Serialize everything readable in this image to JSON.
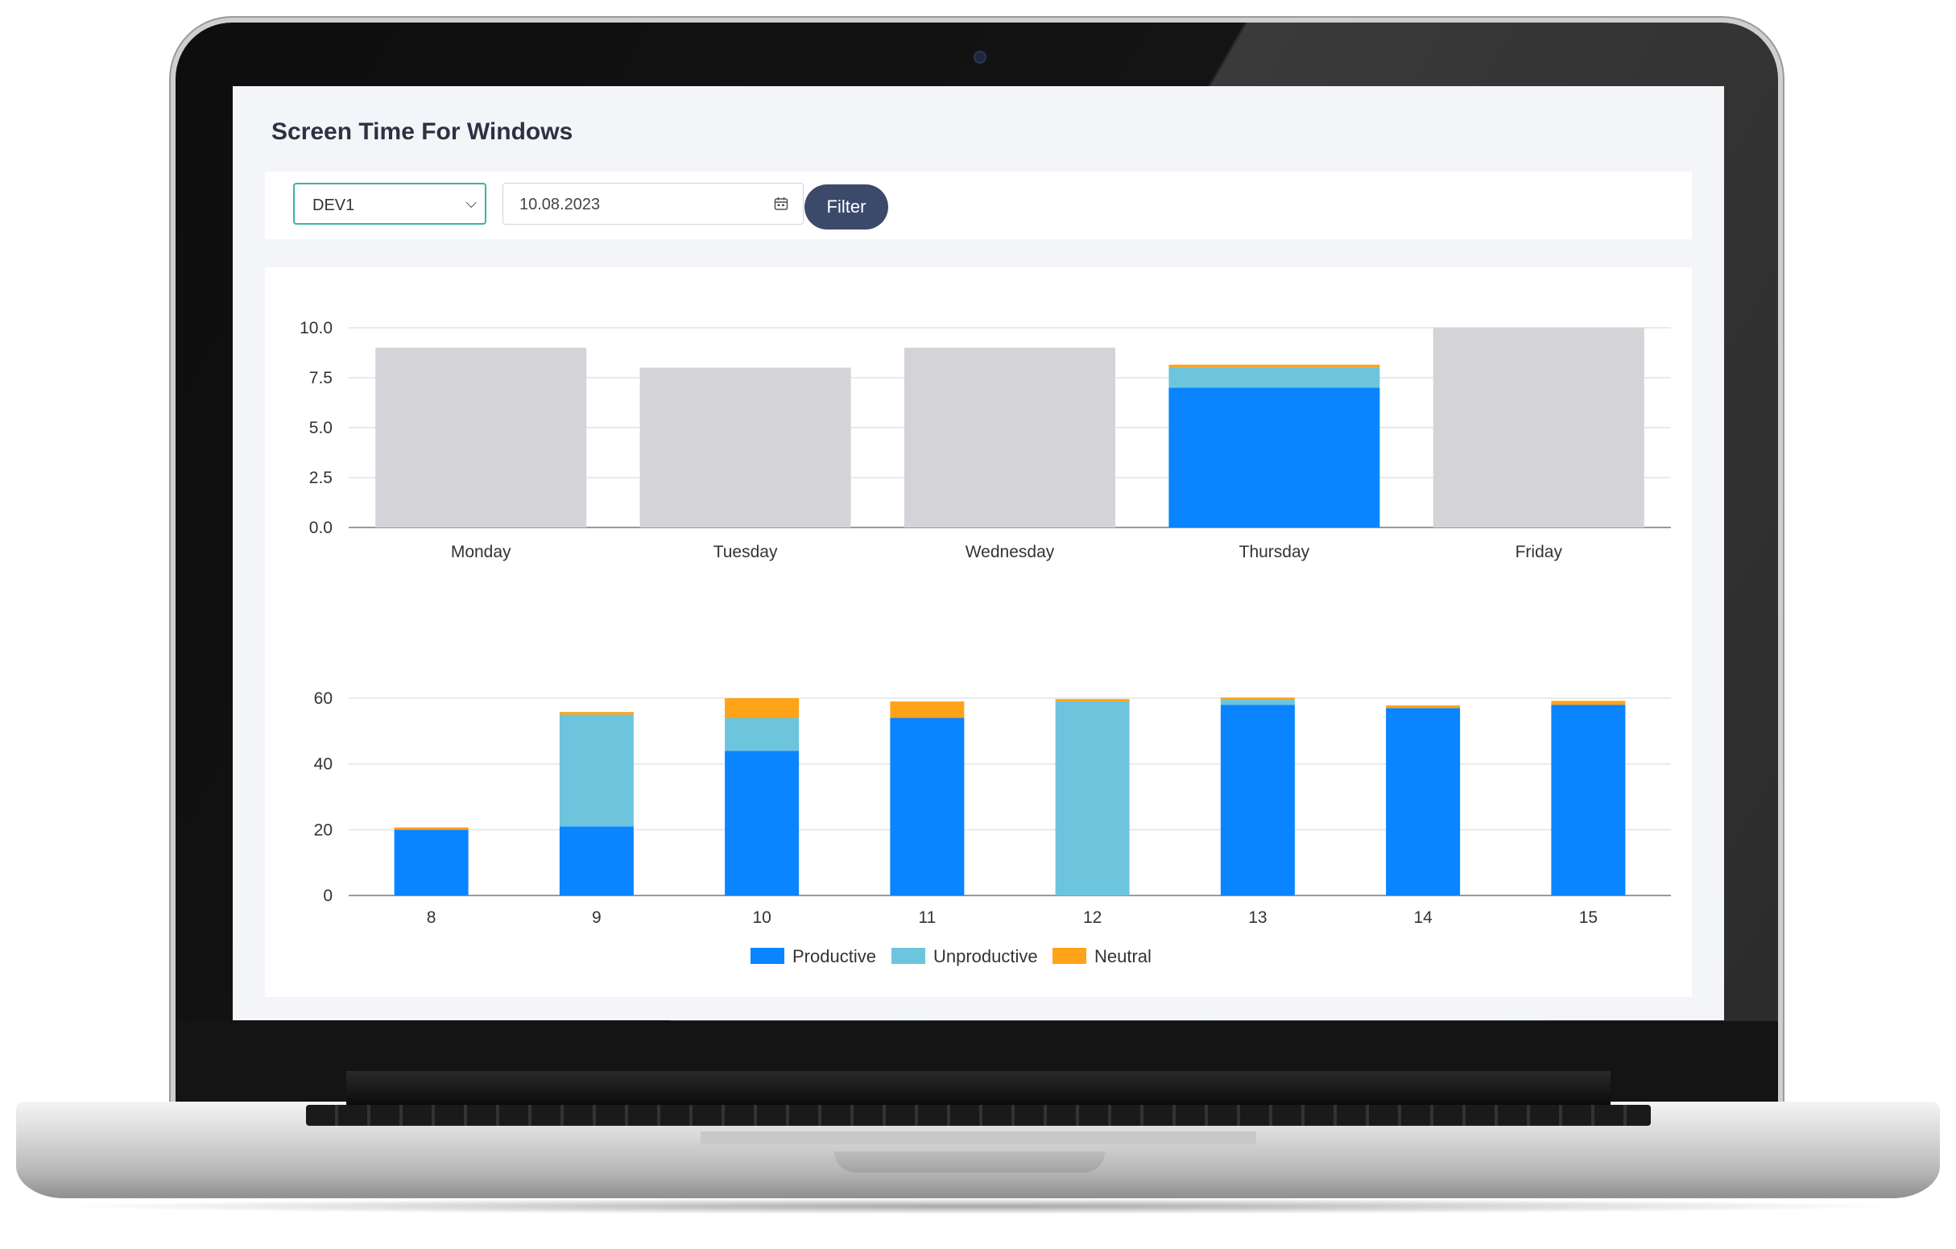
{
  "header": {
    "title": "Screen Time For Windows"
  },
  "filters": {
    "device": "DEV1",
    "date": "10.08.2023",
    "filter_label": "Filter"
  },
  "colors": {
    "productive": "#0a84ff",
    "unproductive": "#6cc5dc",
    "neutral": "#ffa319",
    "inactive": "#d3d3d8"
  },
  "chart_data": [
    {
      "type": "bar",
      "categories": [
        "Monday",
        "Tuesday",
        "Wednesday",
        "Thursday",
        "Friday"
      ],
      "ylim": [
        0,
        10
      ],
      "yticks": [
        "0.0",
        "2.5",
        "5.0",
        "7.5",
        "10.0"
      ],
      "series": [
        {
          "values": [
            9.0,
            8.0,
            9.0,
            0,
            10.0
          ],
          "color": "#d3d3d8"
        },
        {
          "name": "Productive",
          "values": [
            0,
            0,
            0,
            7.0,
            0
          ],
          "color": "#0a84ff"
        },
        {
          "name": "Unproductive",
          "values": [
            0,
            0,
            0,
            1.0,
            0
          ],
          "color": "#6cc5dc"
        },
        {
          "name": "Neutral",
          "values": [
            0,
            0,
            0,
            0.15,
            0
          ],
          "color": "#ffa319"
        }
      ],
      "stacked": true
    },
    {
      "type": "bar",
      "categories": [
        "8",
        "9",
        "10",
        "11",
        "12",
        "13",
        "14",
        "15"
      ],
      "ylim": [
        0,
        60
      ],
      "yticks": [
        "0",
        "20",
        "40",
        "60"
      ],
      "stacked": true,
      "legend": "bottom",
      "series": [
        {
          "name": "Productive",
          "values": [
            20,
            21,
            44,
            54,
            0,
            58,
            57,
            58
          ],
          "color": "#0a84ff"
        },
        {
          "name": "Unproductive",
          "values": [
            0,
            34,
            10,
            0,
            59,
            1.5,
            0,
            0
          ],
          "color": "#6cc5dc"
        },
        {
          "name": "Neutral",
          "values": [
            0.7,
            0.8,
            6,
            5,
            0.7,
            0.7,
            0.8,
            1.2
          ],
          "color": "#ffa319"
        }
      ]
    }
  ]
}
